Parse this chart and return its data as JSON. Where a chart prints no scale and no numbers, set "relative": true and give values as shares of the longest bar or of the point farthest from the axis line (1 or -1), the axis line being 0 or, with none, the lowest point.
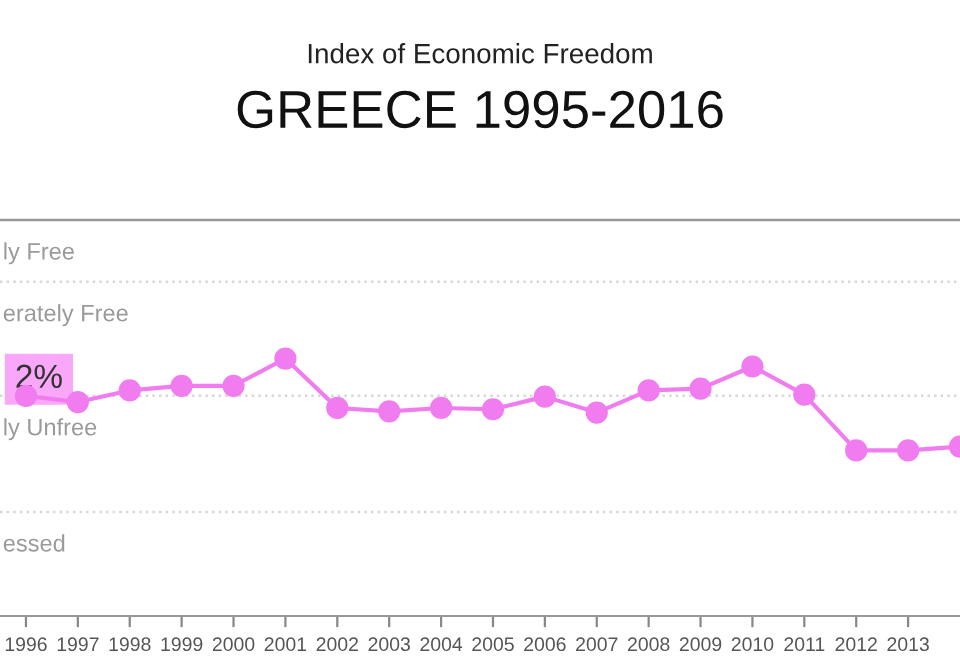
{
  "chart_data": {
    "type": "line",
    "title": "Index of Economic Freedom",
    "subtitle": "GREECE 1995-2016",
    "relative": true,
    "x": [
      1996,
      1997,
      1998,
      1999,
      2000,
      2001,
      2002,
      2003,
      2004,
      2005,
      2006,
      2007,
      2008,
      2009,
      2010,
      2011,
      2012,
      2013,
      2014
    ],
    "series": [
      {
        "color": "#f07cf0",
        "values": [
          0.855,
          0.831,
          0.876,
          0.894,
          0.894,
          1.0,
          0.808,
          0.795,
          0.808,
          0.803,
          0.852,
          0.79,
          0.876,
          0.883,
          0.969,
          0.86,
          0.643,
          0.643,
          0.658
        ]
      }
    ],
    "xlim": [
      1995.5,
      2014.0
    ],
    "xticks": [
      1996,
      1997,
      1998,
      1999,
      2000,
      2001,
      2002,
      2003,
      2004,
      2005,
      2006,
      2007,
      2008,
      2009,
      2010,
      2011,
      2012,
      2013
    ],
    "ref_lines": [
      {
        "axis": "y",
        "value": 1.538,
        "color": "#999999",
        "line_style": "solid",
        "label": "ly Free"
      },
      {
        "axis": "y",
        "value": 1.298,
        "color": "#d8d8d8",
        "line_style": "dotted",
        "label": "erately Free"
      },
      {
        "axis": "y",
        "value": 0.855,
        "color": "#d8d8d8",
        "line_style": "dotted",
        "label": "ly Unfree"
      },
      {
        "axis": "y",
        "value": 0.404,
        "color": "#d8d8d8",
        "line_style": "dotted",
        "label": "essed"
      }
    ],
    "annotations": [
      {
        "text": "2%",
        "x": 1996,
        "y": 0.855
      }
    ],
    "marker": "circle",
    "line_style": "solid",
    "legend": false
  }
}
